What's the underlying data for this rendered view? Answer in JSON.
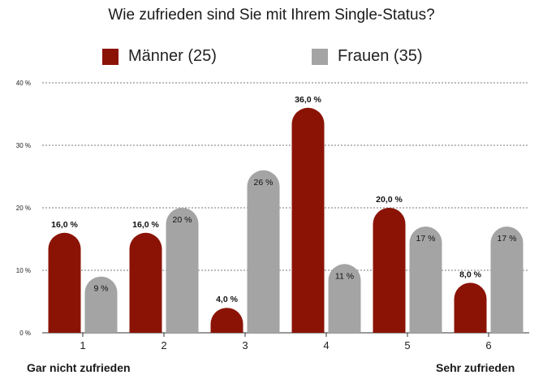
{
  "chart_data": {
    "type": "bar",
    "title": "Wie zufrieden sind Sie mit Ihrem Single-Status?",
    "categories": [
      "1",
      "2",
      "3",
      "4",
      "5",
      "6"
    ],
    "y_ticks": [
      "0 %",
      "10 %",
      "20 %",
      "30 %",
      "40 %"
    ],
    "ylim": [
      0,
      40
    ],
    "grid": true,
    "legend_position": "top",
    "series": [
      {
        "name": "Männer (25)",
        "color": "#8b1306",
        "values": [
          16,
          16,
          4,
          36,
          20,
          8
        ],
        "labels": [
          "16,0 %",
          "16,0 %",
          "4,0 %",
          "36,0 %",
          "20,0 %",
          "8,0 %"
        ]
      },
      {
        "name": "Frauen (35)",
        "color": "#a3a4a3",
        "values": [
          9,
          20,
          26,
          11,
          17,
          17
        ],
        "labels": [
          "9 %",
          "20 %",
          "26 %",
          "11 %",
          "17 %",
          "17 %"
        ]
      }
    ],
    "scale_left_label": "Gar nicht zufrieden",
    "scale_right_label": "Sehr zufrieden"
  }
}
